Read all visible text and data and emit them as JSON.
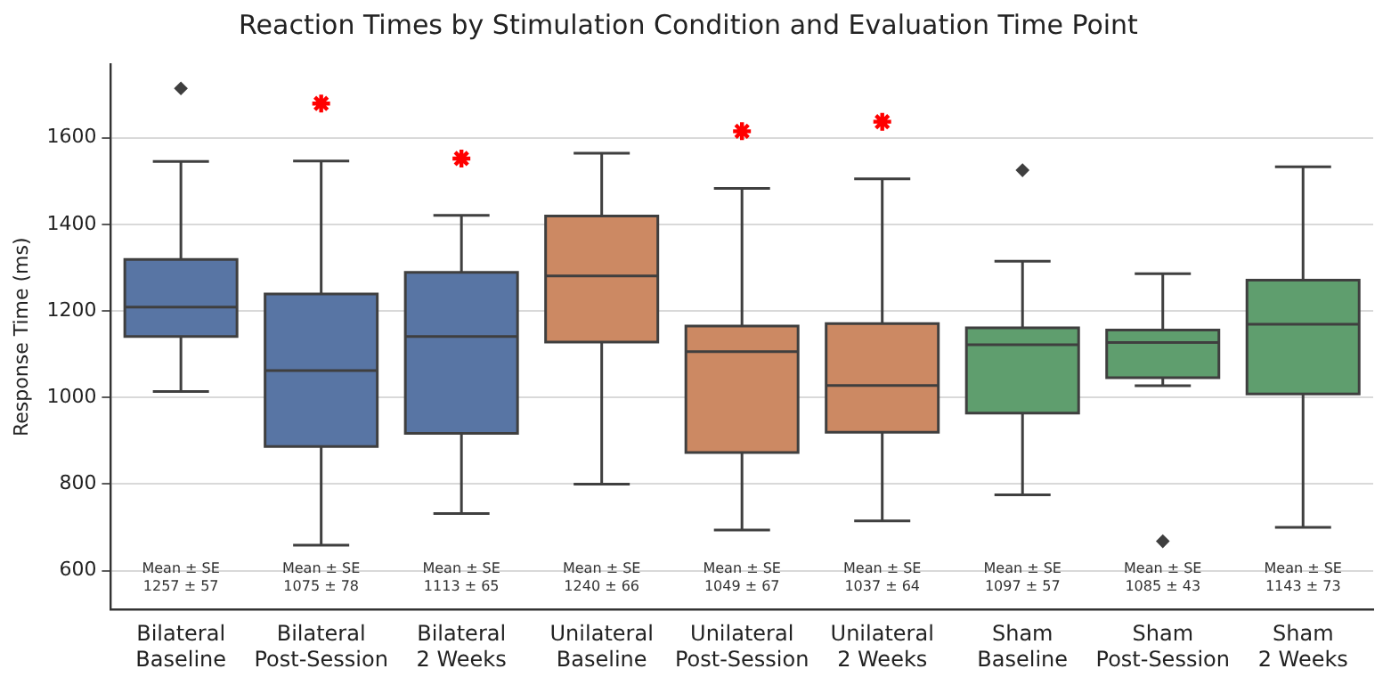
{
  "chart_data": {
    "type": "box",
    "title": "Reaction Times by Stimulation Condition and Evaluation Time Point",
    "ylabel": "Response Time (ms)",
    "categories": [
      "Bilateral\nBaseline",
      "Bilateral\nPost-Session",
      "Bilateral\n2 Weeks",
      "Unilateral\nBaseline",
      "Unilateral\nPost-Session",
      "Unilateral\n2 Weeks",
      "Sham\nBaseline",
      "Sham\nPost-Session",
      "Sham\n2 Weeks"
    ],
    "boxes": [
      {
        "low": 1014,
        "q1": 1141,
        "median": 1209,
        "q3": 1319,
        "high": 1545,
        "outliers": [
          1714
        ]
      },
      {
        "low": 659,
        "q1": 887,
        "median": 1062,
        "q3": 1239,
        "high": 1546
      },
      {
        "low": 732,
        "q1": 917,
        "median": 1141,
        "q3": 1289,
        "high": 1421
      },
      {
        "low": 800,
        "q1": 1128,
        "median": 1281,
        "q3": 1419,
        "high": 1564
      },
      {
        "low": 694,
        "q1": 873,
        "median": 1106,
        "q3": 1165,
        "high": 1483
      },
      {
        "low": 715,
        "q1": 920,
        "median": 1028,
        "q3": 1171,
        "high": 1505
      },
      {
        "low": 775,
        "q1": 964,
        "median": 1122,
        "q3": 1161,
        "high": 1315,
        "outliers": [
          1525
        ]
      },
      {
        "low": 1027,
        "q1": 1046,
        "median": 1127,
        "q3": 1156,
        "high": 1286,
        "outliers": [
          668
        ]
      },
      {
        "low": 700,
        "q1": 1008,
        "median": 1169,
        "q3": 1271,
        "high": 1533
      }
    ],
    "colors": [
      "#5875a4",
      "#5875a4",
      "#5875a4",
      "#cc8963",
      "#cc8963",
      "#cc8963",
      "#5f9e6e",
      "#5f9e6e",
      "#5f9e6e"
    ],
    "value_labels": [
      "Mean ± SE\n1257 ± 57",
      "Mean ± SE\n1075 ± 78",
      "Mean ± SE\n1113 ± 65",
      "Mean ± SE\n1240 ± 66",
      "Mean ± SE\n1049 ± 67",
      "Mean ± SE\n1037 ± 64",
      "Mean ± SE\n1097 ± 57",
      "Mean ± SE\n1085 ± 43",
      "Mean ± SE\n1143 ± 73"
    ],
    "series": [
      {
        "type": "scatter",
        "color": "#ff0000",
        "marker": "cross",
        "x": [
          "Bilateral\nPost-Session",
          "Bilateral\n2 Weeks",
          "Unilateral\nPost-Session",
          "Unilateral\n2 Weeks"
        ],
        "values": [
          1679,
          1552,
          1615,
          1637
        ]
      }
    ],
    "ylim": [
      510,
      1770
    ],
    "yticks": [
      600,
      800,
      1000,
      1200,
      1400,
      1600
    ],
    "grid": "y",
    "legend": false
  }
}
